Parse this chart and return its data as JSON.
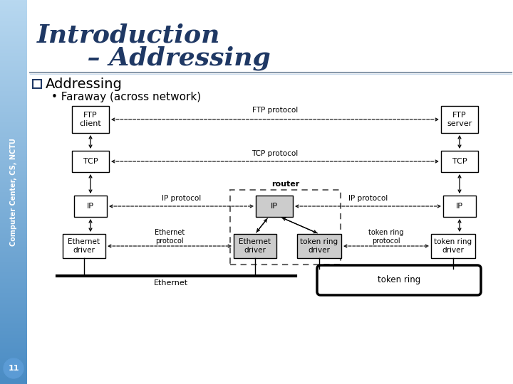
{
  "bg_color": "#ffffff",
  "sidebar_gradient_top": "#a8d4f5",
  "sidebar_gradient_bot": "#4a90d0",
  "sidebar_text": "Computer Center, CS, NCTU",
  "title_line1": "Introduction",
  "title_line2": "    – Addressing",
  "title_color": "#1f3864",
  "section_label": "Addressing",
  "bullet": "Faraway (across network)",
  "slide_number": "11"
}
